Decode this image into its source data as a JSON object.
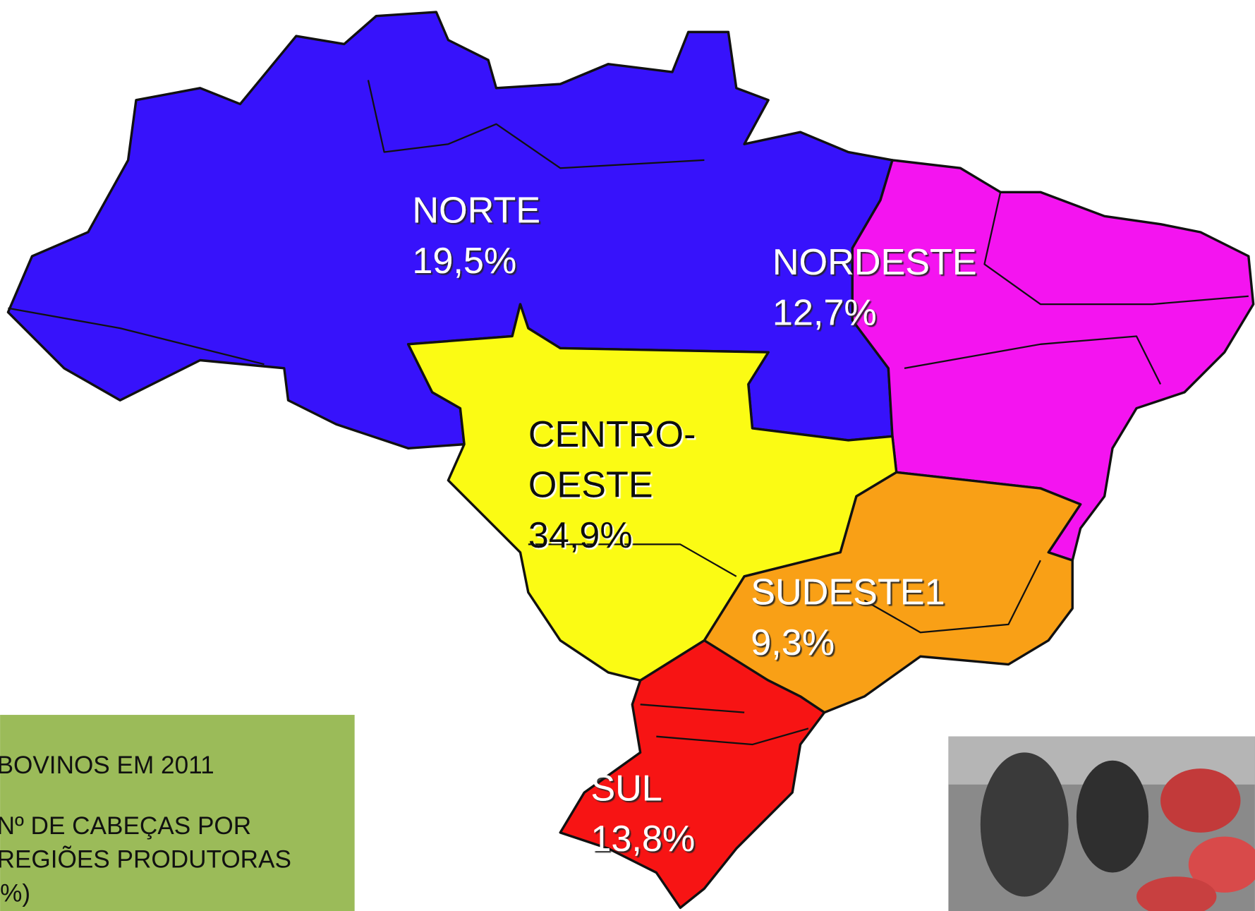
{
  "map": {
    "regions": [
      {
        "lines": [
          "NORTE"
        ],
        "share": "19,5%"
      },
      {
        "lines": [
          "NORDESTE"
        ],
        "share": "12,7%"
      },
      {
        "lines": [
          "CENTRO-",
          "OESTE"
        ],
        "share": "34,9%"
      },
      {
        "lines": [
          "SUDESTE1"
        ],
        "share": "9,3%"
      },
      {
        "lines": [
          "SUL"
        ],
        "share": "13,8%"
      }
    ]
  },
  "panel": {
    "title": "BOVINOS EM 2011",
    "lines": [
      "Nº DE CABEÇAS POR",
      "REGIÕES PRODUTORAS",
      "%)"
    ]
  }
}
